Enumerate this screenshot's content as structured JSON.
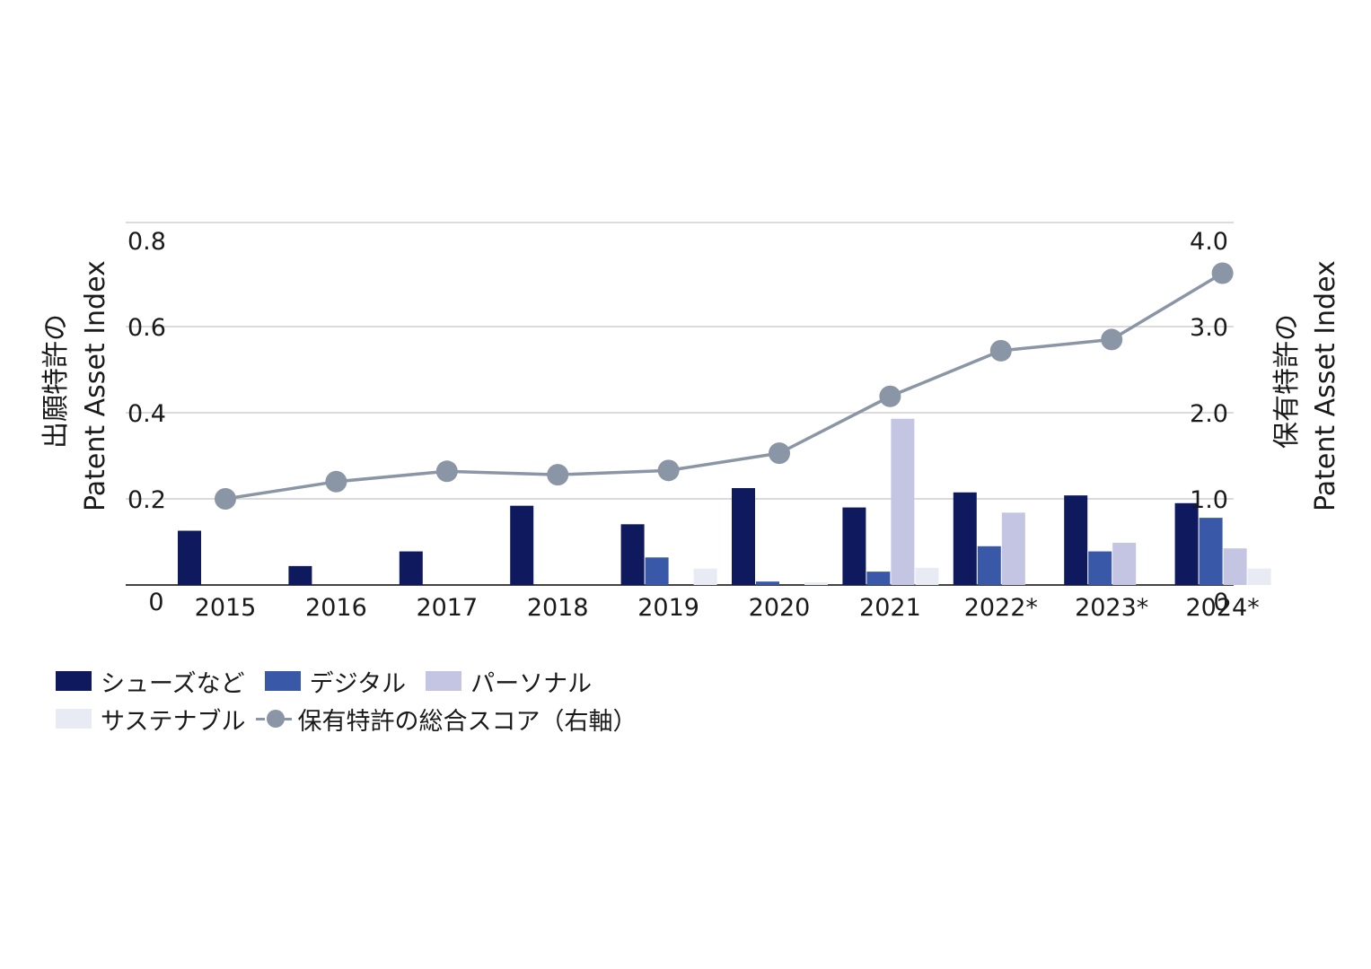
{
  "chart_data": {
    "type": "bar",
    "categories": [
      "2015",
      "2016",
      "2017",
      "2018",
      "2019",
      "2020",
      "2021",
      "2022*",
      "2023*",
      "2024*"
    ],
    "series": [
      {
        "name": "シューズなど",
        "color": "#0f1a5e",
        "values": [
          0.126,
          0.044,
          0.078,
          0.184,
          0.141,
          0.225,
          0.18,
          0.215,
          0.208,
          0.19
        ]
      },
      {
        "name": "デジタル",
        "color": "#3a58a8",
        "values": [
          0,
          0,
          0,
          0,
          0.064,
          0.008,
          0.031,
          0.09,
          0.078,
          0.156
        ]
      },
      {
        "name": "パーソナル",
        "color": "#c3c5e3",
        "values": [
          0,
          0,
          0,
          0,
          0,
          0,
          0.386,
          0.168,
          0.098,
          0.085
        ]
      },
      {
        "name": "サステナブル",
        "color": "#e9ebf4",
        "values": [
          0,
          0,
          0,
          0,
          0.038,
          0.006,
          0.04,
          0,
          0,
          0.038
        ]
      }
    ],
    "line_series": {
      "name": "保有特許の総合スコア(右軸)",
      "color": "#8a95a5",
      "axis": "right",
      "values": [
        1.0,
        1.2,
        1.32,
        1.28,
        1.33,
        1.53,
        2.19,
        2.72,
        2.85,
        3.62
      ]
    },
    "y_left": {
      "label_line1": "出願特許の",
      "label_line2": "Patent Asset Index",
      "ylim": [
        0,
        0.8
      ],
      "ticks": [
        "0",
        "0.2",
        "0.4",
        "0.6",
        "0.8"
      ]
    },
    "y_right": {
      "label_line1": "保有特許の",
      "label_line2": "Patent Asset Index",
      "ylim": [
        0,
        4.0
      ],
      "ticks": [
        "0",
        "1.0",
        "2.0",
        "3.0",
        "4.0"
      ]
    },
    "grid": true,
    "legend_position": "bottom-left"
  },
  "legend": {
    "row1": [
      "シューズなど",
      "デジタル",
      "パーソナル"
    ],
    "row2_bar": "サステナブル",
    "row2_line": "保有特許の総合スコア（右軸）"
  }
}
